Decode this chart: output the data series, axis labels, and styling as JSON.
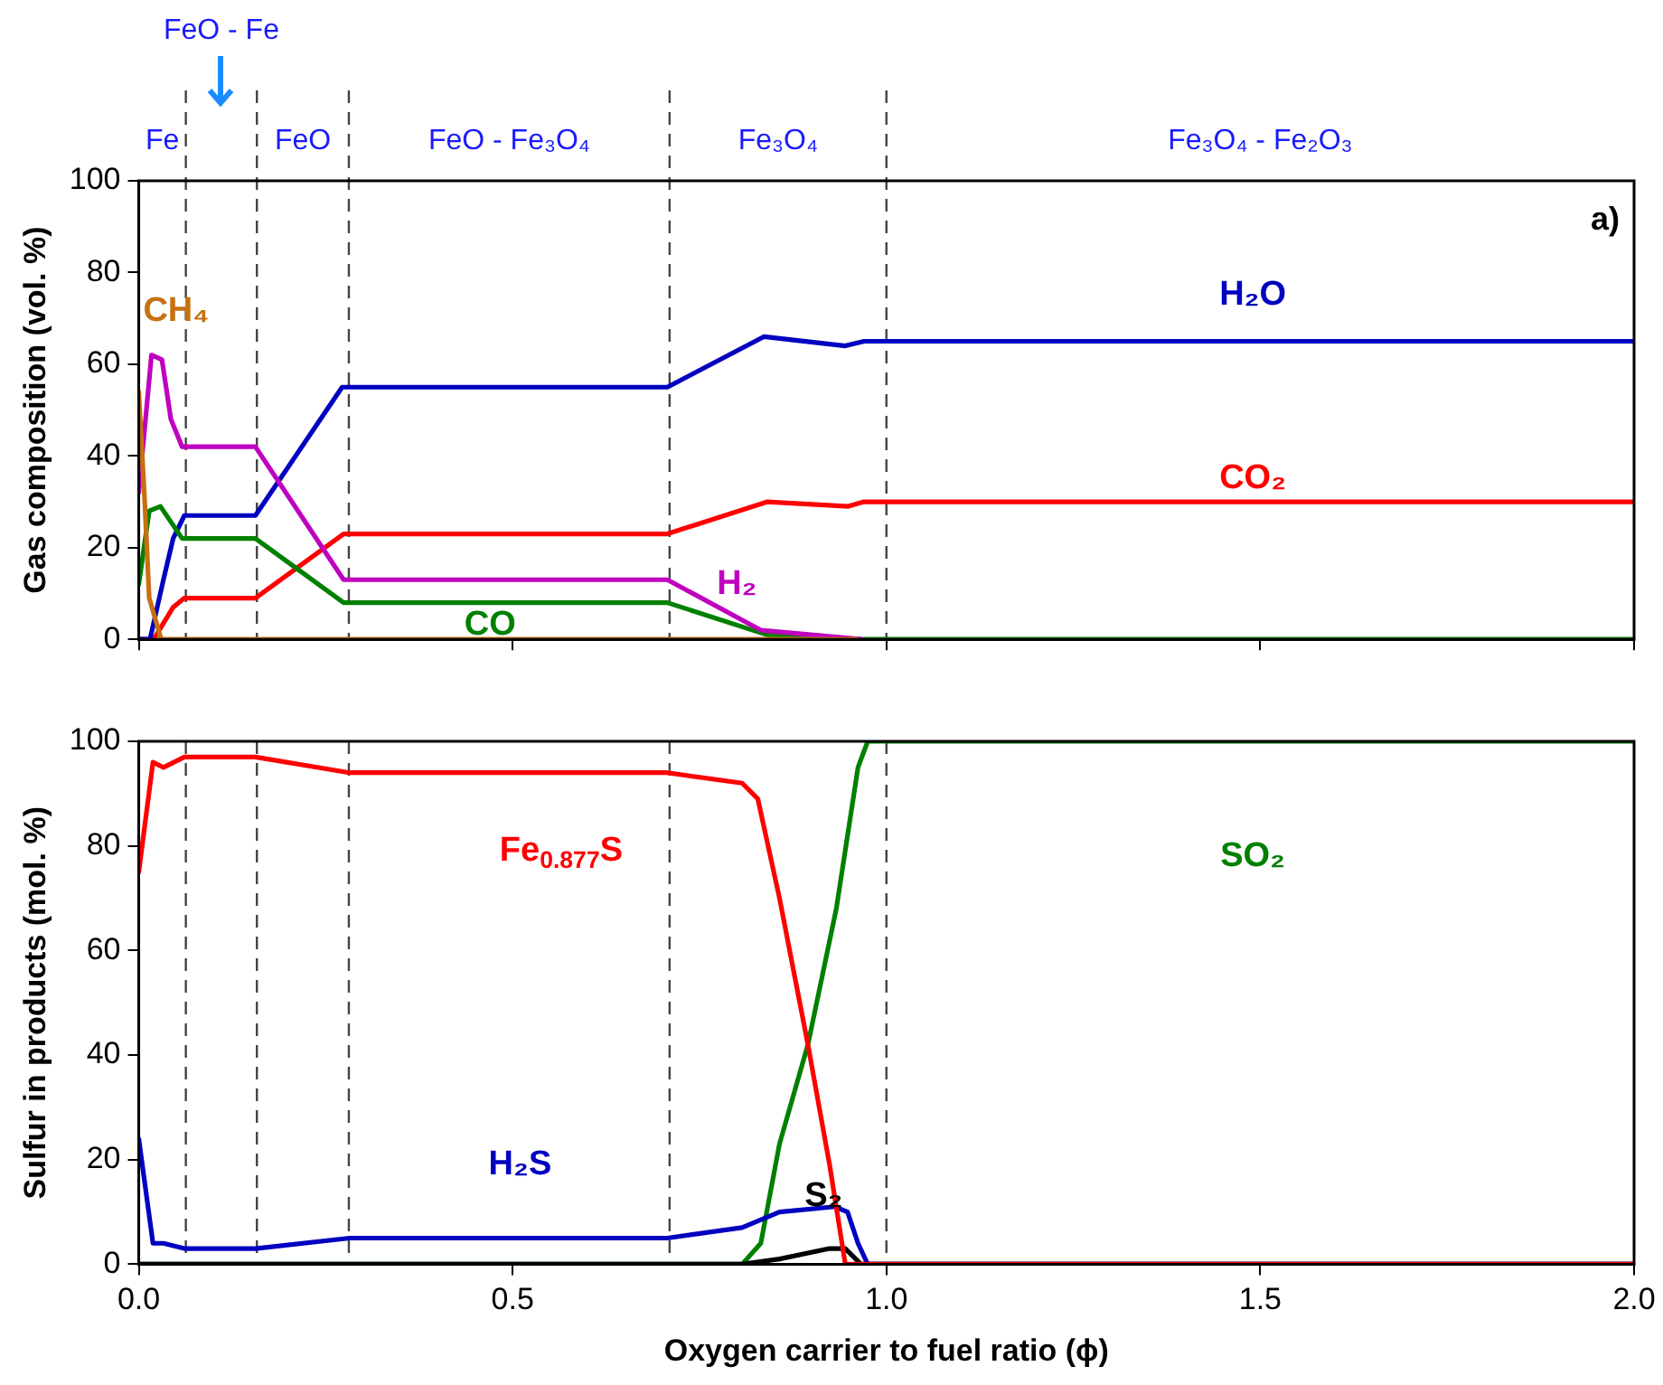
{
  "chart_data": [
    {
      "type": "line",
      "ylabel": "Gas composition (vol. %)",
      "xlim": [
        0,
        2
      ],
      "xticks": [
        {
          "value": 0,
          "label": null
        },
        {
          "value": 0.5,
          "label": null
        },
        {
          "value": 1,
          "label": null
        },
        {
          "value": 1.5,
          "label": null
        },
        {
          "value": 2,
          "label": null
        }
      ],
      "ylim": [
        0,
        100
      ],
      "yticks": [
        0,
        20,
        40,
        60,
        80,
        100
      ],
      "tick_labels": "y",
      "legend": false,
      "marker": "none",
      "line_style": "solid",
      "series": [
        {
          "name": "CH₄",
          "color": "#c87010",
          "x": [
            0,
            0.008,
            0.014,
            0.03,
            0.96
          ],
          "values": [
            54,
            30,
            9,
            0,
            0
          ]
        },
        {
          "name": "H₂",
          "color": "#c000c0",
          "x": [
            0,
            0.017,
            0.031,
            0.043,
            0.058,
            0.156,
            0.274,
            0.707,
            0.832,
            0.966
          ],
          "values": [
            32,
            62,
            61,
            48,
            42,
            42,
            13,
            13,
            2,
            0
          ]
        },
        {
          "name": "CO",
          "color": "#008000",
          "x": [
            0,
            0.014,
            0.029,
            0.058,
            0.156,
            0.274,
            0.707,
            0.84,
            0.966,
            2
          ],
          "values": [
            12,
            28,
            29,
            22,
            22,
            8,
            8,
            1,
            0,
            0
          ]
        },
        {
          "name": "H₂O",
          "color": "#0000c0",
          "x": [
            0,
            0.015,
            0.033,
            0.046,
            0.061,
            0.156,
            0.272,
            0.707,
            0.836,
            0.945,
            0.97,
            2
          ],
          "values": [
            0,
            0,
            13,
            22,
            27,
            27,
            55,
            55,
            66,
            64,
            65,
            65
          ]
        },
        {
          "name": "CO₂",
          "color": "#ff0000",
          "x": [
            0,
            0.02,
            0.046,
            0.061,
            0.156,
            0.274,
            0.707,
            0.841,
            0.949,
            0.97,
            2
          ],
          "values": [
            0,
            0,
            7,
            9,
            9,
            23,
            23,
            30,
            29,
            30,
            30
          ]
        }
      ],
      "ref_lines": [
        {
          "axis": "x",
          "value": 0.063,
          "line_style": "dashed"
        },
        {
          "axis": "x",
          "value": 0.158,
          "line_style": "dashed"
        },
        {
          "axis": "x",
          "value": 0.281,
          "line_style": "dashed"
        },
        {
          "axis": "x",
          "value": 0.71,
          "line_style": "dashed"
        },
        {
          "axis": "x",
          "value": 1,
          "line_style": "dashed"
        }
      ],
      "annotations": [
        "Fe",
        "FeO - Fe",
        "FeO",
        "FeO - Fe₃O₄",
        "Fe₃O₄",
        "Fe₃O₄ - Fe₂O₃",
        "a)"
      ]
    },
    {
      "type": "line",
      "ylabel": "Sulfur in products (mol. %)",
      "xlabel": "Oxygen carrier to fuel ratio (ϕ)",
      "xlim": [
        0,
        2
      ],
      "xticks": [
        {
          "value": 0,
          "label": "0.0"
        },
        {
          "value": 0.5,
          "label": "0.5"
        },
        {
          "value": 1,
          "label": "1.0"
        },
        {
          "value": 1.5,
          "label": "1.5"
        },
        {
          "value": 2,
          "label": "2.0"
        }
      ],
      "ylim": [
        0,
        100
      ],
      "yticks": [
        0,
        20,
        40,
        60,
        80,
        100
      ],
      "legend": false,
      "marker": "none",
      "line_style": "solid",
      "series": [
        {
          "name": "Fe$_{0.877}$S",
          "color": "#ff0000",
          "x": [
            0,
            0.019,
            0.033,
            0.061,
            0.156,
            0.282,
            0.707,
            0.807,
            0.828,
            0.857,
            0.895,
            0.924,
            0.945,
            2
          ],
          "values": [
            75,
            96,
            95,
            97,
            97,
            94,
            94,
            92,
            89,
            70,
            42,
            19,
            0,
            0
          ]
        },
        {
          "name": "H₂S",
          "color": "#0000c0",
          "x": [
            0,
            0.019,
            0.033,
            0.061,
            0.156,
            0.282,
            0.707,
            0.807,
            0.857,
            0.931,
            0.948,
            0.962,
            0.975,
            2
          ],
          "values": [
            24,
            4,
            4,
            3,
            3,
            5,
            5,
            7,
            10,
            11,
            10,
            4,
            0,
            0
          ]
        },
        {
          "name": "S₂",
          "color": "#000000",
          "x": [
            0,
            0.807,
            0.857,
            0.924,
            0.945,
            0.966,
            2
          ],
          "values": [
            0,
            0,
            1,
            3,
            3,
            0,
            0
          ]
        },
        {
          "name": "SO₂",
          "color": "#008000",
          "x": [
            0,
            0.807,
            0.832,
            0.857,
            0.895,
            0.933,
            0.962,
            0.975,
            2
          ],
          "values": [
            0,
            0,
            4,
            23,
            42,
            68,
            95,
            100,
            100
          ]
        }
      ],
      "ref_lines": [
        {
          "axis": "x",
          "value": 0.063,
          "line_style": "dashed"
        },
        {
          "axis": "x",
          "value": 0.158,
          "line_style": "dashed"
        },
        {
          "axis": "x",
          "value": 0.281,
          "line_style": "dashed"
        },
        {
          "axis": "x",
          "value": 0.71,
          "line_style": "dashed"
        },
        {
          "axis": "x",
          "value": 1,
          "line_style": "dashed"
        }
      ]
    }
  ]
}
